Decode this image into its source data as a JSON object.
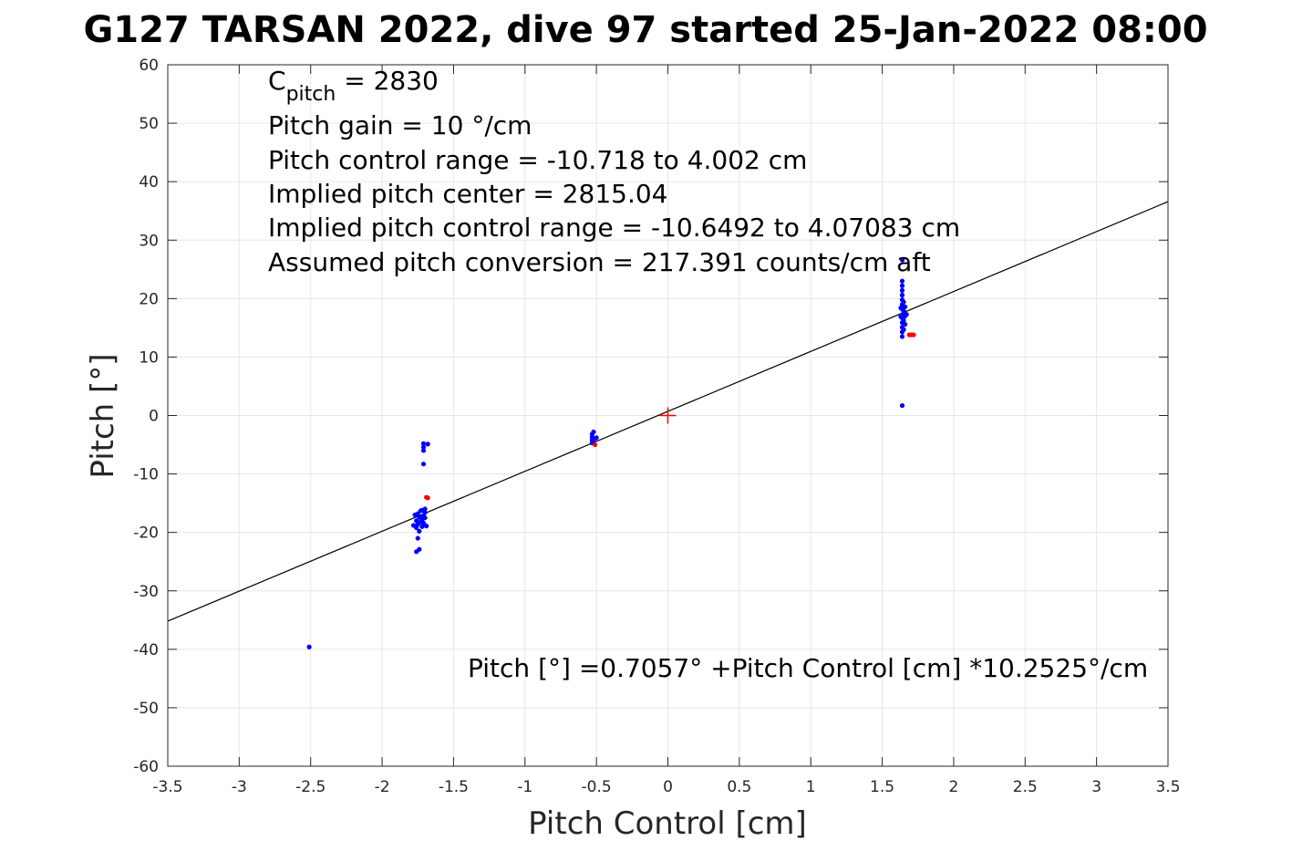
{
  "chart_data": {
    "type": "scatter",
    "title": "G127 TARSAN 2022, dive 97 started 25-Jan-2022 08:00",
    "xlabel": "Pitch Control [cm]",
    "ylabel": "Pitch [°]",
    "xlim": [
      -3.5,
      3.5
    ],
    "ylim": [
      -60,
      60
    ],
    "xticks": [
      -3.5,
      -3,
      -2.5,
      -2,
      -1.5,
      -1,
      -0.5,
      0,
      0.5,
      1,
      1.5,
      2,
      2.5,
      3,
      3.5
    ],
    "xtick_labels": [
      "-3.5",
      "-3",
      "-2.5",
      "-2",
      "-1.5",
      "-1",
      "-0.5",
      "0",
      "0.5",
      "1",
      "1.5",
      "2",
      "2.5",
      "3",
      "3.5"
    ],
    "yticks": [
      -60,
      -50,
      -40,
      -30,
      -20,
      -10,
      0,
      10,
      20,
      30,
      40,
      50,
      60
    ],
    "ytick_labels": [
      "-60",
      "-50",
      "-40",
      "-30",
      "-20",
      "-10",
      "0",
      "10",
      "20",
      "30",
      "40",
      "50",
      "60"
    ],
    "grid": true,
    "annotations": {
      "c_pitch_base": "C",
      "c_pitch_sub": "pitch",
      "c_pitch_rest": " = 2830",
      "pitch_gain": "Pitch gain = 10 °/cm",
      "pitch_control_range": "Pitch control range = -10.718 to 4.002 cm",
      "implied_center": "Implied pitch center = 2815.04",
      "implied_range": "Implied pitch control range = -10.6492 to 4.07083 cm",
      "conversion": "Assumed pitch conversion = 217.391 counts/cm aft",
      "fit_equation": "Pitch [°] =0.7057° +Pitch Control [cm] *10.2525°/cm"
    },
    "fit_line": {
      "intercept": 0.7057,
      "slope": 10.2525,
      "color": "#000000"
    },
    "center_marker": {
      "x": 0,
      "y": 0,
      "color": "#ff0000"
    },
    "series": [
      {
        "color": "#0000ff",
        "points": [
          [
            -2.51,
            -39.6
          ],
          [
            -1.76,
            -23.3
          ],
          [
            -1.74,
            -22.9
          ],
          [
            -1.75,
            -21.0
          ],
          [
            -1.74,
            -19.8
          ],
          [
            -1.76,
            -19.2
          ],
          [
            -1.75,
            -18.6
          ],
          [
            -1.76,
            -18.0
          ],
          [
            -1.74,
            -17.4
          ],
          [
            -1.75,
            -16.8
          ],
          [
            -1.73,
            -16.3
          ],
          [
            -1.72,
            -19.0
          ],
          [
            -1.71,
            -18.4
          ],
          [
            -1.72,
            -17.8
          ],
          [
            -1.71,
            -17.2
          ],
          [
            -1.7,
            -16.6
          ],
          [
            -1.7,
            -16.0
          ],
          [
            -1.69,
            -18.9
          ],
          [
            -1.7,
            -17.5
          ],
          [
            -1.72,
            -16.2
          ],
          [
            -1.73,
            -18.2
          ],
          [
            -1.77,
            -17.0
          ],
          [
            -1.78,
            -18.8
          ],
          [
            -1.71,
            -8.3
          ],
          [
            -1.71,
            -6.0
          ],
          [
            -1.71,
            -5.4
          ],
          [
            -1.71,
            -4.8
          ],
          [
            -1.68,
            -4.9
          ],
          [
            -0.53,
            -4.7
          ],
          [
            -0.53,
            -4.2
          ],
          [
            -0.53,
            -3.7
          ],
          [
            -0.53,
            -3.2
          ],
          [
            -0.52,
            -2.8
          ],
          [
            -0.52,
            -4.4
          ],
          [
            -0.5,
            -3.8
          ],
          [
            1.64,
            1.7
          ],
          [
            1.64,
            13.5
          ],
          [
            1.64,
            14.3
          ],
          [
            1.64,
            15.1
          ],
          [
            1.64,
            15.9
          ],
          [
            1.64,
            16.7
          ],
          [
            1.65,
            17.5
          ],
          [
            1.64,
            18.2
          ],
          [
            1.64,
            19.0
          ],
          [
            1.64,
            19.8
          ],
          [
            1.64,
            20.6
          ],
          [
            1.64,
            21.4
          ],
          [
            1.64,
            22.2
          ],
          [
            1.64,
            23.0
          ],
          [
            1.65,
            16.3
          ],
          [
            1.65,
            17.9
          ],
          [
            1.66,
            17.0
          ],
          [
            1.66,
            18.6
          ],
          [
            1.67,
            17.3
          ],
          [
            1.66,
            15.6
          ],
          [
            1.63,
            18.4
          ],
          [
            1.63,
            16.9
          ],
          [
            1.65,
            19.4
          ],
          [
            1.65,
            14.7
          ],
          [
            1.64,
            26.6
          ]
        ]
      },
      {
        "color": "#ff0000",
        "points": [
          [
            -1.69,
            -14.0
          ],
          [
            -1.68,
            -14.1
          ],
          [
            -0.51,
            -5.0
          ],
          [
            1.69,
            13.8
          ],
          [
            1.7,
            13.8
          ],
          [
            1.71,
            13.8
          ],
          [
            1.72,
            13.8
          ]
        ]
      }
    ]
  }
}
